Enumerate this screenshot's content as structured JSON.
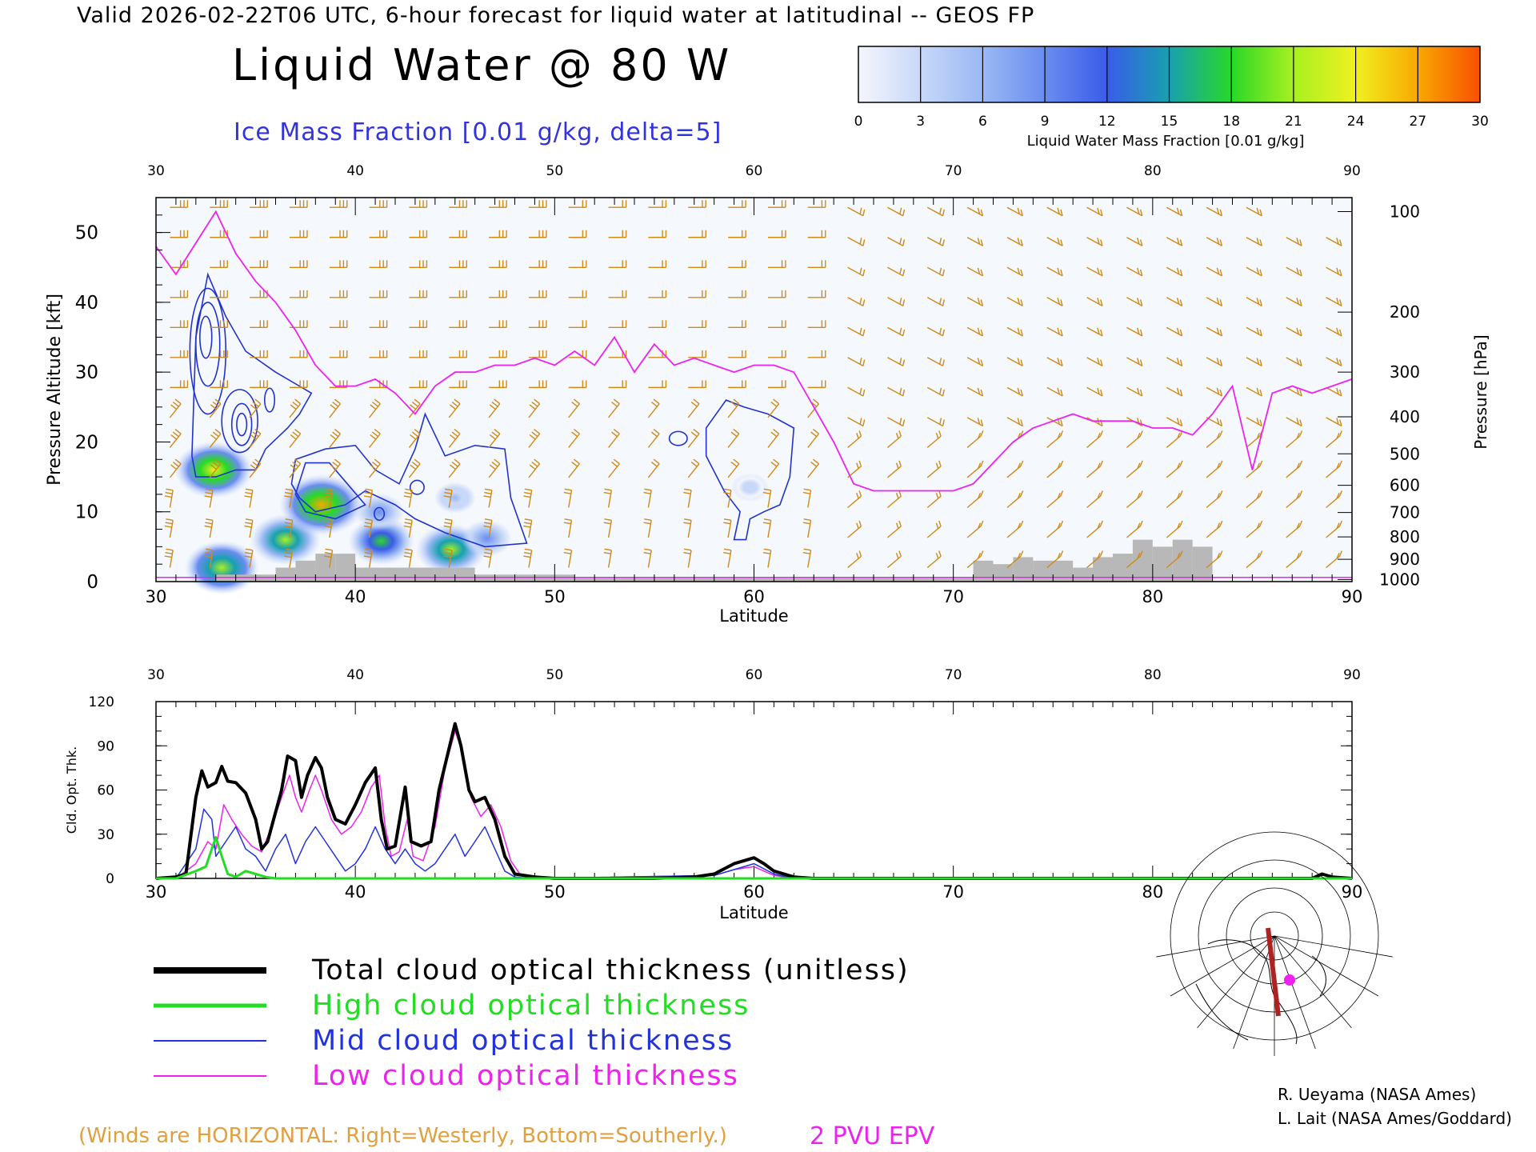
{
  "header": {
    "valid_line": "Valid 2026-02-22T06 UTC, 6-hour forecast for liquid water at latitudinal -- GEOS FP",
    "title": "Liquid Water @ 80 W",
    "subtitle": "Ice Mass Fraction [0.01 g/kg, delta=5]"
  },
  "colorbar": {
    "label": "Liquid Water Mass Fraction [0.01 g/kg]",
    "ticks": [
      "0",
      "3",
      "6",
      "9",
      "12",
      "15",
      "18",
      "21",
      "24",
      "27",
      "30"
    ],
    "colors": [
      "#f4f6fc",
      "#c8d8f8",
      "#9ab8f4",
      "#6a8cf0",
      "#3a5ce8",
      "#18a0b0",
      "#28d828",
      "#a8f020",
      "#f0f020",
      "#f8a800",
      "#f85000"
    ]
  },
  "legend": {
    "items": [
      {
        "label": "Total cloud optical thickness (unitless)",
        "color": "#000000"
      },
      {
        "label": "High cloud optical thickness",
        "color": "#22dd22"
      },
      {
        "label": "Mid cloud optical thickness",
        "color": "#2233dd"
      },
      {
        "label": "Low cloud optical thickness",
        "color": "#ee22ee"
      }
    ]
  },
  "footer": {
    "winds_note": "(Winds are HORIZONTAL: Right=Westerly, Bottom=Southerly.)",
    "epv_label": "2 PVU EPV",
    "credit_1": "R. Ueyama (NASA Ames)",
    "credit_2": "L. Lait (NASA Ames/Goddard)"
  },
  "chart_data": [
    {
      "type": "heatmap",
      "title": "Liquid Water @ 80 W",
      "xlabel": "Latitude",
      "ylabel": "Pressure Altitude [kft]",
      "ylabel_right": "Pressure [hPa]",
      "xlim": [
        30,
        90
      ],
      "ylim": [
        0,
        55
      ],
      "x_ticks": [
        "30",
        "40",
        "50",
        "60",
        "70",
        "80",
        "90"
      ],
      "y_ticks": [
        "0",
        "10",
        "20",
        "30",
        "40",
        "50"
      ],
      "pressure_ticks": [
        {
          "label": "100",
          "kft": 53
        },
        {
          "label": "200",
          "kft": 38.6
        },
        {
          "label": "300",
          "kft": 30
        },
        {
          "label": "400",
          "kft": 23.6
        },
        {
          "label": "500",
          "kft": 18.3
        },
        {
          "label": "600",
          "kft": 13.8
        },
        {
          "label": "700",
          "kft": 9.9
        },
        {
          "label": "800",
          "kft": 6.4
        },
        {
          "label": "900",
          "kft": 3.2
        },
        {
          "label": "1000",
          "kft": 0.3
        }
      ],
      "liquid_water_blobs": [
        {
          "lat": 32.9,
          "kft": 16.0,
          "value": 24
        },
        {
          "lat": 33.3,
          "kft": 2.0,
          "value": 22
        },
        {
          "lat": 36.5,
          "kft": 6.0,
          "value": 20
        },
        {
          "lat": 38.3,
          "kft": 11.0,
          "value": 27
        },
        {
          "lat": 41.3,
          "kft": 5.8,
          "value": 18
        },
        {
          "lat": 41.2,
          "kft": 10.0,
          "value": 10
        },
        {
          "lat": 44.8,
          "kft": 4.6,
          "value": 20
        },
        {
          "lat": 46.6,
          "kft": 6.2,
          "value": 10
        },
        {
          "lat": 45.0,
          "kft": 12.0,
          "value": 6
        },
        {
          "lat": 59.8,
          "kft": 13.5,
          "value": 4
        }
      ],
      "epv_2pvu_line": [
        [
          30,
          48
        ],
        [
          31,
          44
        ],
        [
          33,
          53
        ],
        [
          34,
          47
        ],
        [
          35,
          43
        ],
        [
          36,
          40
        ],
        [
          37,
          36
        ],
        [
          38,
          31
        ],
        [
          39,
          28
        ],
        [
          40,
          28
        ],
        [
          41,
          29
        ],
        [
          42,
          27
        ],
        [
          43,
          24
        ],
        [
          44,
          28
        ],
        [
          45,
          30
        ],
        [
          46,
          30
        ],
        [
          47,
          31
        ],
        [
          48,
          31
        ],
        [
          49,
          32
        ],
        [
          50,
          31
        ],
        [
          51,
          33
        ],
        [
          52,
          31
        ],
        [
          53,
          35
        ],
        [
          54,
          30
        ],
        [
          55,
          34
        ],
        [
          56,
          31
        ],
        [
          57,
          32
        ],
        [
          58,
          31
        ],
        [
          59,
          30
        ],
        [
          60,
          31
        ],
        [
          61,
          31
        ],
        [
          62,
          30
        ],
        [
          63,
          25
        ],
        [
          64,
          20
        ],
        [
          65,
          14
        ],
        [
          66,
          13
        ],
        [
          67,
          13
        ],
        [
          68,
          13
        ],
        [
          69,
          13
        ],
        [
          70,
          13
        ],
        [
          71,
          14
        ],
        [
          72,
          17
        ],
        [
          73,
          20
        ],
        [
          74,
          22
        ],
        [
          75,
          23
        ],
        [
          76,
          24
        ],
        [
          77,
          23
        ],
        [
          78,
          23
        ],
        [
          79,
          23
        ],
        [
          80,
          22
        ],
        [
          81,
          22
        ],
        [
          82,
          21
        ],
        [
          83,
          24
        ],
        [
          84,
          28
        ],
        [
          85,
          16
        ],
        [
          86,
          27
        ],
        [
          87,
          28
        ],
        [
          88,
          27
        ],
        [
          89,
          28
        ],
        [
          90,
          29
        ]
      ],
      "surface_terrain": [
        [
          33,
          1
        ],
        [
          35,
          1
        ],
        [
          36,
          2
        ],
        [
          37,
          3
        ],
        [
          38,
          4
        ],
        [
          39,
          4
        ],
        [
          40,
          2
        ],
        [
          44,
          2
        ],
        [
          45,
          2
        ],
        [
          46,
          1
        ],
        [
          47,
          1
        ],
        [
          50,
          1
        ],
        [
          51,
          0.5
        ],
        [
          70,
          0.5
        ],
        [
          71,
          3
        ],
        [
          72,
          2.5
        ],
        [
          73,
          3.5
        ],
        [
          74,
          3
        ],
        [
          76,
          2
        ],
        [
          77,
          3.5
        ],
        [
          78,
          4
        ],
        [
          79,
          6
        ],
        [
          80,
          5
        ],
        [
          81,
          6
        ],
        [
          82,
          5
        ],
        [
          83,
          3
        ]
      ]
    },
    {
      "type": "line",
      "xlabel": "Latitude",
      "ylabel": "Cld. Opt. Thk.",
      "xlim": [
        30,
        90
      ],
      "ylim": [
        0,
        120
      ],
      "x_ticks": [
        "30",
        "40",
        "50",
        "60",
        "70",
        "80",
        "90"
      ],
      "y_ticks": [
        "0",
        "30",
        "60",
        "90",
        "120"
      ],
      "series": [
        {
          "name": "Total cloud optical thickness (unitless)",
          "color": "#000000",
          "width": 4,
          "points": [
            [
              30,
              0
            ],
            [
              31,
              1
            ],
            [
              31.5,
              3
            ],
            [
              32,
              55
            ],
            [
              32.3,
              73
            ],
            [
              32.6,
              62
            ],
            [
              33,
              65
            ],
            [
              33.3,
              76
            ],
            [
              33.6,
              66
            ],
            [
              34,
              65
            ],
            [
              34.5,
              58
            ],
            [
              35,
              40
            ],
            [
              35.3,
              20
            ],
            [
              35.6,
              25
            ],
            [
              36,
              45
            ],
            [
              36.3,
              60
            ],
            [
              36.6,
              83
            ],
            [
              37,
              80
            ],
            [
              37.3,
              55
            ],
            [
              37.6,
              70
            ],
            [
              38,
              82
            ],
            [
              38.3,
              75
            ],
            [
              38.6,
              55
            ],
            [
              39,
              40
            ],
            [
              39.5,
              37
            ],
            [
              40,
              50
            ],
            [
              40.5,
              65
            ],
            [
              41,
              75
            ],
            [
              41.3,
              40
            ],
            [
              41.6,
              20
            ],
            [
              42,
              22
            ],
            [
              42.5,
              62
            ],
            [
              42.8,
              25
            ],
            [
              43.3,
              22
            ],
            [
              43.8,
              25
            ],
            [
              44.2,
              60
            ],
            [
              45,
              105
            ],
            [
              45.3,
              90
            ],
            [
              45.7,
              60
            ],
            [
              46,
              52
            ],
            [
              46.5,
              55
            ],
            [
              47,
              40
            ],
            [
              47.5,
              15
            ],
            [
              48,
              3
            ],
            [
              49,
              1
            ],
            [
              50,
              0
            ],
            [
              55,
              0
            ],
            [
              57,
              1
            ],
            [
              58,
              3
            ],
            [
              59,
              10
            ],
            [
              60,
              14
            ],
            [
              60.5,
              10
            ],
            [
              61,
              5
            ],
            [
              62,
              1
            ],
            [
              63,
              0
            ],
            [
              88,
              0
            ],
            [
              88.5,
              3
            ],
            [
              89,
              1
            ],
            [
              90,
              0
            ]
          ]
        },
        {
          "name": "High cloud optical thickness",
          "color": "#22dd22",
          "width": 3,
          "points": [
            [
              30,
              0
            ],
            [
              31,
              0
            ],
            [
              32,
              5
            ],
            [
              32.5,
              8
            ],
            [
              33,
              28
            ],
            [
              33.3,
              15
            ],
            [
              33.6,
              3
            ],
            [
              34,
              1
            ],
            [
              34.5,
              5
            ],
            [
              35,
              3
            ],
            [
              35.5,
              1
            ],
            [
              36,
              0
            ],
            [
              90,
              0
            ]
          ]
        },
        {
          "name": "Mid cloud optical thickness",
          "color": "#2233dd",
          "width": 1.5,
          "points": [
            [
              30,
              0
            ],
            [
              31,
              0
            ],
            [
              32,
              20
            ],
            [
              32.4,
              47
            ],
            [
              32.8,
              40
            ],
            [
              33,
              15
            ],
            [
              33.5,
              25
            ],
            [
              34,
              35
            ],
            [
              34.5,
              20
            ],
            [
              35,
              15
            ],
            [
              35.5,
              5
            ],
            [
              36,
              20
            ],
            [
              36.5,
              30
            ],
            [
              37,
              10
            ],
            [
              37.5,
              25
            ],
            [
              38,
              35
            ],
            [
              38.5,
              25
            ],
            [
              39,
              15
            ],
            [
              39.5,
              5
            ],
            [
              40,
              10
            ],
            [
              40.5,
              20
            ],
            [
              41,
              35
            ],
            [
              41.5,
              20
            ],
            [
              42,
              10
            ],
            [
              42.5,
              20
            ],
            [
              43,
              10
            ],
            [
              43.5,
              5
            ],
            [
              44,
              10
            ],
            [
              45,
              30
            ],
            [
              45.5,
              15
            ],
            [
              46,
              25
            ],
            [
              46.5,
              35
            ],
            [
              47,
              20
            ],
            [
              47.5,
              5
            ],
            [
              48,
              1
            ],
            [
              49,
              0
            ],
            [
              58,
              2
            ],
            [
              59,
              6
            ],
            [
              60,
              10
            ],
            [
              61,
              3
            ],
            [
              62,
              0
            ],
            [
              90,
              0
            ]
          ]
        },
        {
          "name": "Low cloud optical thickness",
          "color": "#ee22ee",
          "width": 1.5,
          "points": [
            [
              30,
              0
            ],
            [
              31,
              0
            ],
            [
              32,
              10
            ],
            [
              32.6,
              25
            ],
            [
              33,
              20
            ],
            [
              33.4,
              50
            ],
            [
              33.8,
              40
            ],
            [
              34.3,
              30
            ],
            [
              34.8,
              22
            ],
            [
              35.3,
              18
            ],
            [
              35.8,
              35
            ],
            [
              36.3,
              55
            ],
            [
              36.7,
              70
            ],
            [
              37,
              55
            ],
            [
              37.3,
              45
            ],
            [
              37.7,
              60
            ],
            [
              38,
              70
            ],
            [
              38.3,
              60
            ],
            [
              38.8,
              40
            ],
            [
              39.3,
              30
            ],
            [
              39.8,
              35
            ],
            [
              40.3,
              45
            ],
            [
              40.8,
              62
            ],
            [
              41.2,
              70
            ],
            [
              41.5,
              35
            ],
            [
              41.8,
              15
            ],
            [
              42.2,
              18
            ],
            [
              42.6,
              40
            ],
            [
              42.9,
              15
            ],
            [
              43.4,
              12
            ],
            [
              44,
              35
            ],
            [
              44.5,
              75
            ],
            [
              45,
              100
            ],
            [
              45.4,
              85
            ],
            [
              45.8,
              55
            ],
            [
              46.3,
              42
            ],
            [
              46.8,
              50
            ],
            [
              47.3,
              35
            ],
            [
              47.8,
              12
            ],
            [
              48.3,
              2
            ],
            [
              49,
              0
            ],
            [
              58,
              2
            ],
            [
              59,
              6
            ],
            [
              60,
              8
            ],
            [
              61,
              2
            ],
            [
              62,
              0
            ],
            [
              90,
              0
            ]
          ]
        }
      ]
    }
  ]
}
